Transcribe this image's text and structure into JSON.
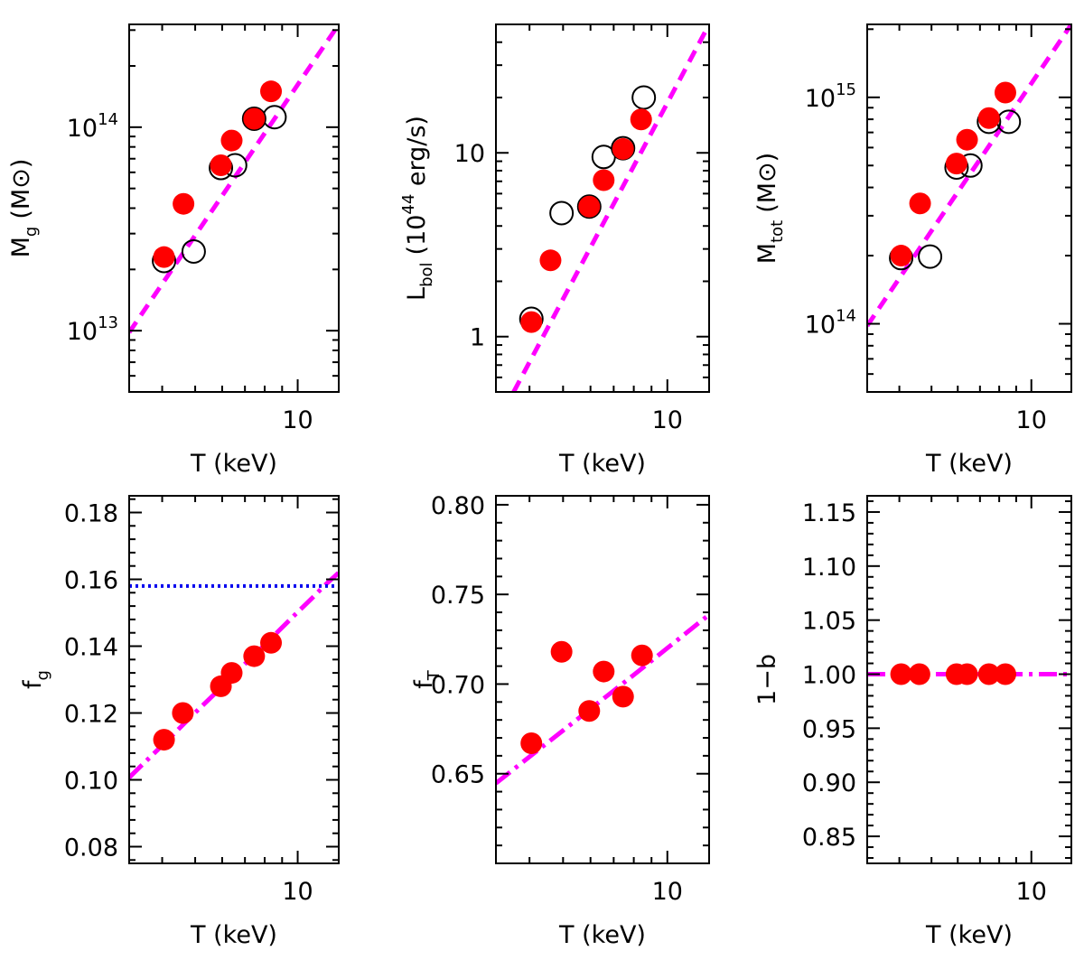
{
  "figure": {
    "description_free": true
  },
  "chart_data": [
    {
      "id": "mg",
      "type": "scatter",
      "xscale": "log",
      "yscale": "log",
      "xlim": [
        3.2,
        13.2
      ],
      "ylim": [
        5000000000000.0,
        320000000000000.0
      ],
      "xlabel": "T (keV)",
      "ylabel_main": "M",
      "ylabel_sub": "g",
      "ylabel_unit": "(M⊙)",
      "xticks": [
        {
          "value": 10,
          "label": "10"
        }
      ],
      "yticks": [
        {
          "value": 10000000000000.0,
          "base": "10",
          "exp": "13"
        },
        {
          "value": 100000000000000.0,
          "base": "10",
          "exp": "14"
        }
      ],
      "series": [
        {
          "name": "filled",
          "style": "filled-red",
          "x": [
            4.05,
            4.62,
            5.95,
            6.4,
            7.45,
            8.35
          ],
          "y": [
            23000000000000.0,
            42000000000000.0,
            65000000000000.0,
            86000000000000.0,
            110000000000000.0,
            150000000000000.0
          ]
        },
        {
          "name": "open",
          "style": "open-black",
          "x": [
            4.05,
            4.95,
            5.95,
            6.55,
            7.45,
            8.55
          ],
          "y": [
            22000000000000.0,
            24500000000000.0,
            63000000000000.0,
            65000000000000.0,
            110000000000000.0,
            112000000000000.0
          ]
        }
      ],
      "lines": [
        {
          "name": "fit",
          "style": "dashed-magenta",
          "x": [
            3.2,
            13.2
          ],
          "y": [
            9800000000000.0,
            320000000000000.0
          ]
        }
      ]
    },
    {
      "id": "lbol",
      "type": "scatter",
      "xscale": "log",
      "yscale": "log",
      "xlim": [
        3.2,
        13.2
      ],
      "ylim": [
        0.5,
        50
      ],
      "xlabel": "T (keV)",
      "ylabel_main": "L",
      "ylabel_sub": "bol",
      "ylabel_unit": "(10",
      "ylabel_sup": "44",
      "ylabel_tail": " erg/s)",
      "xticks": [
        {
          "value": 10,
          "label": "10"
        }
      ],
      "yticks": [
        {
          "value": 1,
          "label": "1"
        },
        {
          "value": 10,
          "label": "10"
        }
      ],
      "series": [
        {
          "name": "filled",
          "style": "filled-red",
          "x": [
            4.05,
            4.6,
            5.95,
            6.55,
            7.45,
            8.4
          ],
          "y": [
            1.2,
            2.6,
            5.1,
            7.1,
            10.5,
            15.2
          ]
        },
        {
          "name": "open",
          "style": "open-black",
          "x": [
            4.05,
            4.95,
            5.95,
            6.55,
            7.45,
            8.55
          ],
          "y": [
            1.25,
            4.7,
            5.1,
            9.5,
            10.6,
            20
          ]
        }
      ],
      "lines": [
        {
          "name": "fit",
          "style": "dashed-magenta",
          "x": [
            3.6,
            13.2
          ],
          "y": [
            0.5,
            50
          ]
        }
      ]
    },
    {
      "id": "mtot",
      "type": "scatter",
      "xscale": "log",
      "yscale": "log",
      "xlim": [
        3.2,
        13.2
      ],
      "ylim": [
        50000000000000.0,
        2100000000000000.0
      ],
      "xlabel": "T (keV)",
      "ylabel_main": "M",
      "ylabel_sub": "tot",
      "ylabel_unit": "(M⊙)",
      "xticks": [
        {
          "value": 10,
          "label": "10"
        }
      ],
      "yticks": [
        {
          "value": 100000000000000.0,
          "base": "10",
          "exp": "14"
        },
        {
          "value": 1000000000000000.0,
          "base": "10",
          "exp": "15"
        }
      ],
      "series": [
        {
          "name": "filled",
          "style": "filled-red",
          "x": [
            4.05,
            4.62,
            5.95,
            6.4,
            7.45,
            8.35
          ],
          "y": [
            200000000000000.0,
            340000000000000.0,
            510000000000000.0,
            650000000000000.0,
            810000000000000.0,
            1050000000000000.0
          ]
        },
        {
          "name": "open",
          "style": "open-black",
          "x": [
            4.05,
            4.95,
            5.95,
            6.55,
            7.45,
            8.55
          ],
          "y": [
            195000000000000.0,
            198000000000000.0,
            490000000000000.0,
            500000000000000.0,
            780000000000000.0,
            780000000000000.0
          ]
        }
      ],
      "lines": [
        {
          "name": "fit",
          "style": "dashed-magenta",
          "x": [
            3.2,
            13.2
          ],
          "y": [
            98000000000000.0,
            2100000000000000.0
          ]
        }
      ]
    },
    {
      "id": "fg",
      "type": "scatter",
      "xscale": "log",
      "yscale": "linear",
      "xlim": [
        3.2,
        13.2
      ],
      "ylim": [
        0.075,
        0.185
      ],
      "xlabel": "T (keV)",
      "ylabel_main": "f",
      "ylabel_sub": "g",
      "xticks": [
        {
          "value": 10,
          "label": "10"
        }
      ],
      "yticks": [
        {
          "value": 0.08,
          "label": "0.08"
        },
        {
          "value": 0.1,
          "label": "0.10"
        },
        {
          "value": 0.12,
          "label": "0.12"
        },
        {
          "value": 0.14,
          "label": "0.14"
        },
        {
          "value": 0.16,
          "label": "0.16"
        },
        {
          "value": 0.18,
          "label": "0.18"
        }
      ],
      "series": [
        {
          "name": "filled",
          "style": "filled-red",
          "x": [
            4.05,
            4.6,
            5.95,
            6.4,
            7.45,
            8.35
          ],
          "y": [
            0.112,
            0.12,
            0.128,
            0.132,
            0.137,
            0.141
          ]
        }
      ],
      "lines": [
        {
          "name": "fit",
          "style": "dashdot-magenta",
          "x": [
            3.2,
            4.0,
            5.0,
            6.0,
            7.0,
            8.0,
            9.0,
            10.0,
            11.0,
            12.0,
            13.2
          ],
          "y": [
            0.1007,
            0.1103,
            0.1201,
            0.1279,
            0.1347,
            0.1404,
            0.1456,
            0.1502,
            0.1543,
            0.1582,
            0.162
          ]
        },
        {
          "name": "baryon",
          "style": "dotted-blue",
          "x": [
            3.2,
            13.2
          ],
          "y": [
            0.158,
            0.158
          ]
        }
      ]
    },
    {
      "id": "ft",
      "type": "scatter",
      "xscale": "log",
      "yscale": "linear",
      "xlim": [
        3.2,
        13.2
      ],
      "ylim": [
        0.6,
        0.805
      ],
      "xlabel": "T (keV)",
      "ylabel_main": "f",
      "ylabel_sub": "T",
      "xticks": [
        {
          "value": 10,
          "label": "10"
        }
      ],
      "yticks": [
        {
          "value": 0.65,
          "label": "0.65"
        },
        {
          "value": 0.7,
          "label": "0.70"
        },
        {
          "value": 0.75,
          "label": "0.75"
        },
        {
          "value": 0.8,
          "label": "0.80"
        }
      ],
      "series": [
        {
          "name": "filled",
          "style": "filled-red",
          "x": [
            4.05,
            4.95,
            5.95,
            6.55,
            7.45,
            8.45
          ],
          "y": [
            0.667,
            0.718,
            0.685,
            0.707,
            0.693,
            0.716
          ]
        }
      ],
      "lines": [
        {
          "name": "fit",
          "style": "dashdot-magenta",
          "x": [
            3.2,
            4.0,
            5.0,
            6.0,
            7.0,
            8.0,
            9.0,
            10.0,
            11.0,
            12.0,
            13.2
          ],
          "y": [
            0.6447,
            0.6595,
            0.6741,
            0.6862,
            0.6963,
            0.7051,
            0.713,
            0.7201,
            0.7264,
            0.7323,
            0.7387
          ]
        }
      ]
    },
    {
      "id": "oneminusb",
      "type": "scatter",
      "xscale": "log",
      "yscale": "linear",
      "xlim": [
        3.2,
        13.2
      ],
      "ylim": [
        0.825,
        1.165
      ],
      "xlabel": "T (keV)",
      "ylabel_main": "1−b",
      "xticks": [
        {
          "value": 10,
          "label": "10"
        }
      ],
      "yticks": [
        {
          "value": 0.85,
          "label": "0.85"
        },
        {
          "value": 0.9,
          "label": "0.90"
        },
        {
          "value": 0.95,
          "label": "0.95"
        },
        {
          "value": 1.0,
          "label": "1.00"
        },
        {
          "value": 1.05,
          "label": "1.05"
        },
        {
          "value": 1.1,
          "label": "1.10"
        },
        {
          "value": 1.15,
          "label": "1.15"
        }
      ],
      "series": [
        {
          "name": "filled",
          "style": "filled-red",
          "x": [
            4.05,
            4.6,
            5.95,
            6.4,
            7.45,
            8.35
          ],
          "y": [
            1.0,
            1.0,
            1.0,
            1.0,
            1.0,
            1.0
          ]
        }
      ],
      "lines": [
        {
          "name": "fit",
          "style": "dashdot-magenta",
          "x": [
            3.2,
            13.2
          ],
          "y": [
            1.0,
            1.0
          ]
        }
      ]
    }
  ],
  "colors": {
    "marker_fill": "#ff0000",
    "fit_line": "#ff00ff",
    "baryon_line": "#0000ee",
    "axes": "#000000"
  }
}
